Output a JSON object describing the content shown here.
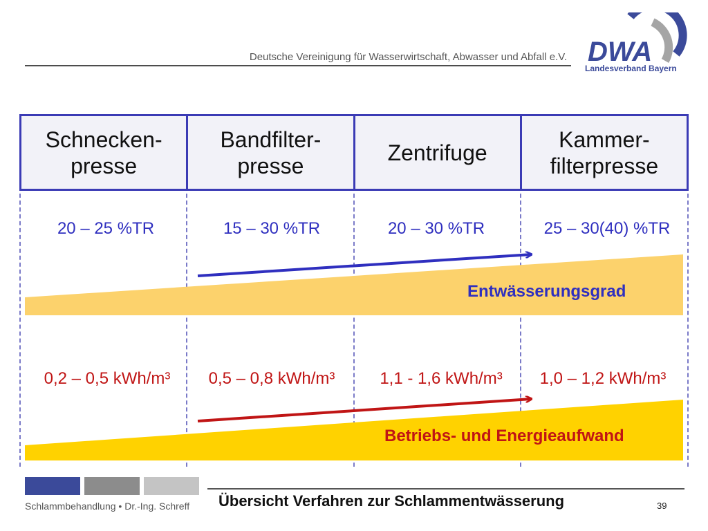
{
  "header": {
    "organization": "Deutsche Vereinigung für Wasserwirtschaft, Abwasser und Abfall e.V.",
    "logo_text": "DWA",
    "logo_subtitle": "Landesverband Bayern"
  },
  "processes": [
    {
      "name": "Schnecken-\npresse",
      "dry_matter": "20 – 25 %TR",
      "energy": "0,2 – 0,5 kWh/m³"
    },
    {
      "name": "Bandfilter-\npresse",
      "dry_matter": "15 – 30 %TR",
      "energy": "0,5 – 0,8 kWh/m³"
    },
    {
      "name": "Zentrifuge",
      "dry_matter": "20 – 30 %TR",
      "energy": "1,1 - 1,6 kWh/m³"
    },
    {
      "name": "Kammer-\nfilterpresse",
      "dry_matter": "25 – 30(40) %TR",
      "energy": "1,0 – 1,2 kWh/m³"
    }
  ],
  "trends": {
    "dewatering_label": "Entwässerungsgrad",
    "energy_label": "Betriebs- und Energieaufwand"
  },
  "footer": {
    "left": "Schlammbehandlung • Dr.-Ing. Schreff",
    "title": "Übersicht Verfahren zur Schlammentwässerung",
    "page": "39"
  },
  "colors": {
    "table_border": "#3b3bb5",
    "dewatering": "#2f2fbf",
    "energy": "#c01515",
    "wedge_light": "#fcd26c",
    "wedge_strong": "#ffd200"
  }
}
